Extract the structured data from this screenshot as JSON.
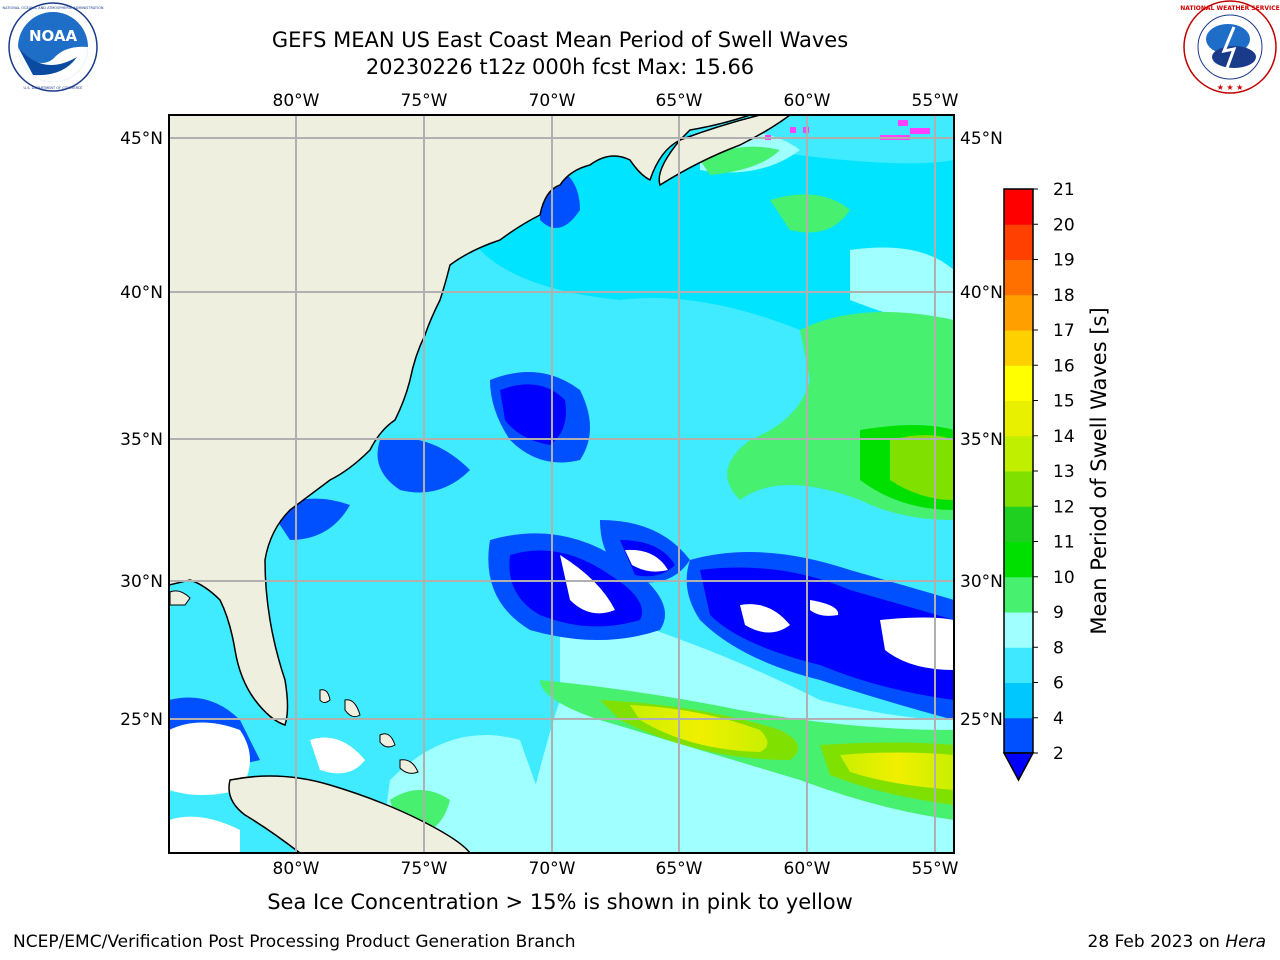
{
  "title": {
    "line1": "GEFS MEAN US East Coast Mean Period of Swell Waves",
    "line2": "20230226 t12z 000h fcst   Max: 15.66"
  },
  "logos": {
    "left": {
      "name": "noaa-logo",
      "text": "NOAA",
      "ring_top": "NATIONAL OCEANIC AND ATMOSPHERIC ADMINISTRATION",
      "ring_bottom": "U.S. DEPARTMENT OF COMMERCE"
    },
    "right": {
      "name": "nws-logo",
      "ring_text": "NATIONAL WEATHER SERVICE"
    }
  },
  "map": {
    "lon_labels": [
      "80°W",
      "75°W",
      "70°W",
      "65°W",
      "60°W",
      "55°W"
    ],
    "lat_labels": [
      "45°N",
      "40°N",
      "35°N",
      "30°N",
      "25°N"
    ],
    "colors": {
      "land": "#efefdf",
      "frame": "#000000",
      "grid": "#b0b0b0"
    }
  },
  "colorbar": {
    "label": "Mean Period of Swell Waves [s]",
    "ticks": [
      "2",
      "4",
      "6",
      "8",
      "9",
      "10",
      "11",
      "12",
      "13",
      "14",
      "15",
      "16",
      "17",
      "18",
      "19",
      "20",
      "21"
    ],
    "colors": [
      "#0050ff",
      "#00c8ff",
      "#40e8ff",
      "#a0ffff",
      "#48f070",
      "#00e000",
      "#20d020",
      "#80e000",
      "#c0f000",
      "#e8f000",
      "#ffff00",
      "#ffd000",
      "#ffa000",
      "#ff7000",
      "#ff4000",
      "#ff0000"
    ],
    "under_color": "#0000ff"
  },
  "footer": {
    "note": "Sea Ice Concentration > 15% is shown in pink to yellow",
    "credit_left": "NCEP/EMC/Verification Post Processing Product Generation Branch",
    "date": "28 Feb 2023 on ",
    "machine": "Hera"
  }
}
